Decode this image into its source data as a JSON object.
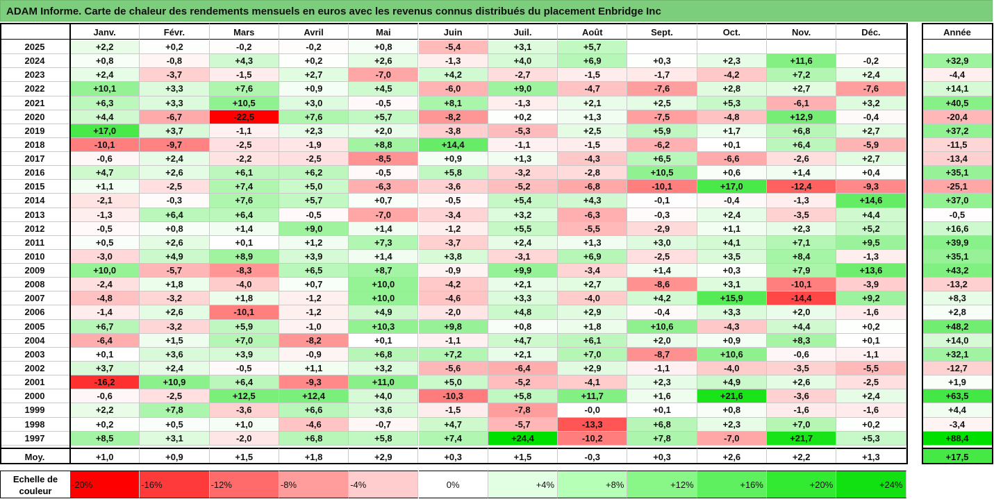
{
  "title": "ADAM Informe. Carte de chaleur des rendements mensuels en euros avec les revenus connus distribués du placement Enbridge Inc",
  "chart_data": {
    "type": "heatmap",
    "columns": [
      "Janv.",
      "Févr.",
      "Mars",
      "Avril",
      "Mai",
      "Juin",
      "Juil.",
      "Août",
      "Sept.",
      "Oct.",
      "Nov.",
      "Déc."
    ],
    "annual_header": "Année",
    "rows": [
      {
        "year": "2025",
        "values": [
          "+2,2",
          "+0,2",
          "-0,2",
          "-0,2",
          "+0,8",
          "-5,4",
          "+3,1",
          "+5,7",
          "",
          "",
          "",
          ""
        ],
        "annual": ""
      },
      {
        "year": "2024",
        "values": [
          "+0,8",
          "-0,8",
          "+4,3",
          "+0,2",
          "+2,6",
          "-1,3",
          "+4,0",
          "+6,9",
          "+0,3",
          "+2,3",
          "+11,6",
          "-0,2"
        ],
        "annual": "+32,9"
      },
      {
        "year": "2023",
        "values": [
          "+2,4",
          "-3,7",
          "-1,5",
          "+2,7",
          "-7,0",
          "+4,2",
          "-2,7",
          "-1,5",
          "-1,7",
          "-4,2",
          "+7,2",
          "+2,4"
        ],
        "annual": "-4,4"
      },
      {
        "year": "2022",
        "values": [
          "+10,1",
          "+3,3",
          "+7,6",
          "+0,9",
          "+4,5",
          "-6,0",
          "+9,0",
          "-4,7",
          "-7,6",
          "+2,8",
          "+2,7",
          "-7,6"
        ],
        "annual": "+14,1"
      },
      {
        "year": "2021",
        "values": [
          "+6,3",
          "+3,3",
          "+10,5",
          "+3,0",
          "-0,5",
          "+8,1",
          "-1,3",
          "+2,1",
          "+2,5",
          "+5,3",
          "-6,1",
          "+3,2"
        ],
        "annual": "+40,5"
      },
      {
        "year": "2020",
        "values": [
          "+4,4",
          "-6,7",
          "-22,5",
          "+7,6",
          "+5,7",
          "-8,2",
          "+0,2",
          "+1,3",
          "-7,5",
          "-4,8",
          "+12,9",
          "-0,4"
        ],
        "annual": "-20,4"
      },
      {
        "year": "2019",
        "values": [
          "+17,0",
          "+3,7",
          "-1,1",
          "+2,3",
          "+2,0",
          "-3,8",
          "-5,3",
          "+2,5",
          "+5,9",
          "+1,7",
          "+6,8",
          "+2,7"
        ],
        "annual": "+37,2"
      },
      {
        "year": "2018",
        "values": [
          "-10,1",
          "-9,7",
          "-2,5",
          "-1,9",
          "+8,8",
          "+14,4",
          "-1,1",
          "-1,5",
          "-6,2",
          "+0,1",
          "+6,4",
          "-5,9"
        ],
        "annual": "-11,5"
      },
      {
        "year": "2017",
        "values": [
          "-0,6",
          "+2,4",
          "-2,2",
          "-2,5",
          "-8,5",
          "+0,9",
          "+1,3",
          "-4,3",
          "+6,5",
          "-6,6",
          "-2,6",
          "+2,7"
        ],
        "annual": "-13,4"
      },
      {
        "year": "2016",
        "values": [
          "+4,7",
          "+2,6",
          "+6,1",
          "+6,2",
          "-0,5",
          "+5,8",
          "-3,2",
          "-2,8",
          "+10,5",
          "+0,6",
          "+1,4",
          "+0,4"
        ],
        "annual": "+35,1"
      },
      {
        "year": "2015",
        "values": [
          "+1,1",
          "-2,5",
          "+7,4",
          "+5,0",
          "-6,3",
          "-3,6",
          "-5,2",
          "-6,8",
          "-10,1",
          "+17,0",
          "-12,4",
          "-9,3"
        ],
        "annual": "-25,1"
      },
      {
        "year": "2014",
        "values": [
          "-2,1",
          "-0,3",
          "+7,6",
          "+5,7",
          "+0,7",
          "-0,5",
          "+5,4",
          "+4,3",
          "-0,1",
          "-0,4",
          "-1,3",
          "+14,6"
        ],
        "annual": "+37,0"
      },
      {
        "year": "2013",
        "values": [
          "-1,3",
          "+6,4",
          "+6,4",
          "-0,5",
          "-7,0",
          "-3,4",
          "+3,2",
          "-6,3",
          "-0,3",
          "+2,4",
          "-3,5",
          "+4,4"
        ],
        "annual": "-0,5"
      },
      {
        "year": "2012",
        "values": [
          "-0,5",
          "+0,8",
          "+1,4",
          "+9,0",
          "+1,4",
          "-1,2",
          "+5,5",
          "-5,5",
          "-2,9",
          "+1,1",
          "+2,3",
          "+5,2"
        ],
        "annual": "+16,6"
      },
      {
        "year": "2011",
        "values": [
          "+0,5",
          "+2,6",
          "+0,1",
          "+1,2",
          "+7,3",
          "-3,7",
          "+2,4",
          "+1,3",
          "+3,0",
          "+4,1",
          "+7,1",
          "+9,5"
        ],
        "annual": "+39,9"
      },
      {
        "year": "2010",
        "values": [
          "-3,0",
          "+4,9",
          "+8,9",
          "+3,9",
          "+1,4",
          "+3,8",
          "-3,1",
          "+6,9",
          "-2,5",
          "+3,5",
          "+8,4",
          "-1,3"
        ],
        "annual": "+35,1"
      },
      {
        "year": "2009",
        "values": [
          "+10,0",
          "-5,7",
          "-8,3",
          "+6,5",
          "+8,7",
          "-0,9",
          "+9,9",
          "-3,4",
          "+1,4",
          "+0,3",
          "+7,9",
          "+13,6"
        ],
        "annual": "+43,2"
      },
      {
        "year": "2008",
        "values": [
          "-2,4",
          "+1,8",
          "-4,0",
          "+0,7",
          "+10,0",
          "-4,2",
          "+2,1",
          "+2,7",
          "-8,6",
          "+3,1",
          "-10,1",
          "-3,9"
        ],
        "annual": "-13,2"
      },
      {
        "year": "2007",
        "values": [
          "-4,8",
          "-3,2",
          "+1,8",
          "-1,2",
          "+10,0",
          "-4,6",
          "+3,3",
          "-4,0",
          "+4,2",
          "+15,9",
          "-14,4",
          "+9,2"
        ],
        "annual": "+8,3"
      },
      {
        "year": "2006",
        "values": [
          "-1,4",
          "+2,6",
          "-10,1",
          "-1,2",
          "+4,9",
          "-2,0",
          "+4,8",
          "+2,9",
          "-0,4",
          "+3,3",
          "+2,0",
          "-1,6"
        ],
        "annual": "+2,8"
      },
      {
        "year": "2005",
        "values": [
          "+6,7",
          "-3,2",
          "+5,9",
          "-1,0",
          "+10,3",
          "+9,8",
          "+0,8",
          "+1,8",
          "+10,6",
          "-4,3",
          "+4,4",
          "+0,2"
        ],
        "annual": "+48,2"
      },
      {
        "year": "2004",
        "values": [
          "-6,4",
          "+1,5",
          "+7,0",
          "-8,2",
          "+0,1",
          "-1,1",
          "+4,7",
          "+6,1",
          "+2,0",
          "+0,9",
          "+8,3",
          "+0,1"
        ],
        "annual": "+14,0"
      },
      {
        "year": "2003",
        "values": [
          "+0,1",
          "+3,6",
          "+3,9",
          "-0,9",
          "+6,8",
          "+7,2",
          "+2,1",
          "+7,0",
          "-8,7",
          "+10,6",
          "-0,6",
          "-1,1"
        ],
        "annual": "+32,1"
      },
      {
        "year": "2002",
        "values": [
          "+3,7",
          "+2,4",
          "-0,5",
          "+1,1",
          "+3,2",
          "-5,6",
          "-6,4",
          "+2,9",
          "-1,1",
          "-4,0",
          "-3,5",
          "-5,5"
        ],
        "annual": "-12,7"
      },
      {
        "year": "2001",
        "values": [
          "-16,2",
          "+10,9",
          "+6,4",
          "-9,3",
          "+11,0",
          "+5,0",
          "-5,2",
          "-4,1",
          "+2,3",
          "+4,9",
          "+2,6",
          "-2,5"
        ],
        "annual": "+1,9"
      },
      {
        "year": "2000",
        "values": [
          "-0,6",
          "-2,5",
          "+12,5",
          "+12,4",
          "+4,0",
          "-10,3",
          "+5,8",
          "+11,7",
          "+1,6",
          "+21,6",
          "-3,6",
          "+2,4"
        ],
        "annual": "+63,5"
      },
      {
        "year": "1999",
        "values": [
          "+2,2",
          "+7,8",
          "-3,6",
          "+6,6",
          "+3,6",
          "-1,5",
          "-7,8",
          "-0,0",
          "+0,1",
          "+0,8",
          "-1,6",
          "-1,6"
        ],
        "annual": "+4,4"
      },
      {
        "year": "1998",
        "values": [
          "+0,2",
          "+0,5",
          "+1,0",
          "-4,6",
          "-0,7",
          "+4,7",
          "-5,7",
          "-13,3",
          "+6,8",
          "+2,3",
          "+7,0",
          "+0,2"
        ],
        "annual": "-3,4"
      },
      {
        "year": "1997",
        "values": [
          "+8,5",
          "+3,1",
          "-2,0",
          "+6,8",
          "+5,8",
          "+7,4",
          "+24,4",
          "-10,2",
          "+7,8",
          "-7,0",
          "+21,7",
          "+5,3"
        ],
        "annual": "+88,4"
      }
    ],
    "average": {
      "label": "Moy.",
      "values": [
        "+1,0",
        "+0,9",
        "+1,5",
        "+1,8",
        "+2,9",
        "+0,3",
        "+1,5",
        "-0,3",
        "+0,3",
        "+2,6",
        "+2,2",
        "+1,3"
      ],
      "annual": "+17,5"
    },
    "scale": {
      "label_line1": "Echelle de",
      "label_line2": "couleur",
      "steps": [
        {
          "label": "-20%",
          "value": -20,
          "color": "#ff0000"
        },
        {
          "label": "-16%",
          "value": -16,
          "color": "#ff3a3a"
        },
        {
          "label": "-12%",
          "value": -12,
          "color": "#ff6b6b"
        },
        {
          "label": "-8%",
          "value": -8,
          "color": "#ff9c9c"
        },
        {
          "label": "-4%",
          "value": -4,
          "color": "#ffcdcd"
        },
        {
          "label": "0%",
          "value": 0,
          "color": "#ffffff"
        },
        {
          "label": "+4%",
          "value": 4,
          "color": "#e3ffe3"
        },
        {
          "label": "+8%",
          "value": 8,
          "color": "#b6ffb6"
        },
        {
          "label": "+12%",
          "value": 12,
          "color": "#88f788"
        },
        {
          "label": "+16%",
          "value": 16,
          "color": "#5ff05f"
        },
        {
          "label": "+20%",
          "value": 20,
          "color": "#33ea33"
        },
        {
          "label": "+24%",
          "value": 24,
          "color": "#11e011"
        }
      ]
    }
  }
}
